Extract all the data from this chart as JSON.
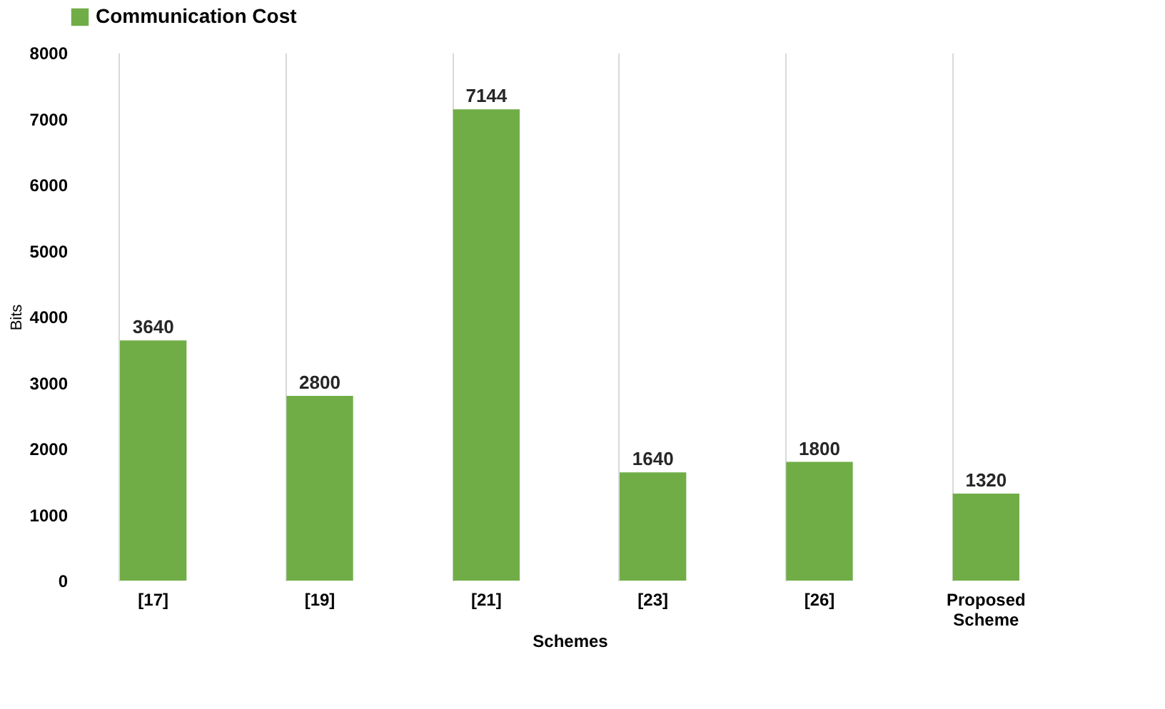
{
  "chart_data": {
    "type": "bar",
    "xlabel": "Schemes",
    "ylabel": "Bits",
    "categories": [
      "[17]",
      "[19]",
      "[21]",
      "[23]",
      "[26]",
      "Proposed Scheme"
    ],
    "series": [
      {
        "name": "Communication Cost",
        "color": "#70ad47",
        "values": [
          3640,
          2800,
          7144,
          1640,
          1800,
          1320
        ]
      }
    ],
    "ylim": [
      0,
      8000
    ],
    "yticks": [
      0,
      1000,
      2000,
      3000,
      4000,
      5000,
      6000,
      7000,
      8000
    ],
    "grid": "x",
    "legend": "top",
    "data_labels": true
  }
}
